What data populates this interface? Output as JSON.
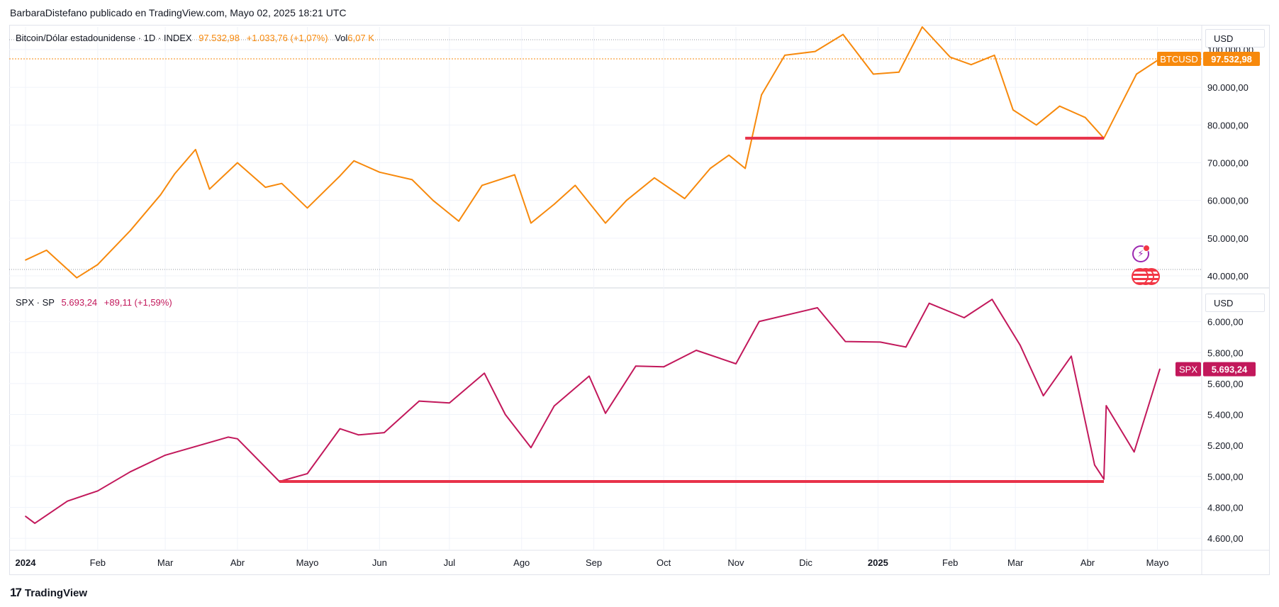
{
  "byline": "BarbaraDistefano publicado en TradingView.com, Mayo 02, 2025 18:21 UTC",
  "footer": {
    "logo": "17",
    "brand": "TradingView"
  },
  "colors": {
    "btc": "#f7890c",
    "spx": "#c2185b",
    "support": "#e8334a",
    "grid": "#f0f3fa",
    "axis_text": "#131722"
  },
  "top_panel": {
    "legend": {
      "symbol": "Bitcoin/Dólar estadounidense · 1D · INDEX",
      "last": "97.532,98",
      "change": "+1.033,76 (+1,07%)",
      "vol_label": "Vol",
      "vol_value": "6,07 K"
    },
    "unit": "USD",
    "price_tag_symbol": "BTCUSD",
    "price_tag_value": "97.532,98",
    "y_ticks": [
      "100.000,00",
      "90.000,00",
      "80.000,00",
      "70.000,00",
      "60.000,00",
      "50.000,00",
      "40.000,00"
    ]
  },
  "bottom_panel": {
    "legend": {
      "symbol": "SPX · SP",
      "last": "5.693,24",
      "change": "+89,11 (+1,59%)"
    },
    "unit": "USD",
    "price_tag_symbol": "SPX",
    "price_tag_value": "5.693,24",
    "y_ticks": [
      "6.000,00",
      "5.800,00",
      "5.600,00",
      "5.400,00",
      "5.200,00",
      "5.000,00",
      "4.800,00",
      "4.600,00"
    ]
  },
  "x_ticks": [
    "2024",
    "Feb",
    "Mar",
    "Abr",
    "Mayo",
    "Jun",
    "Jul",
    "Ago",
    "Sep",
    "Oct",
    "Nov",
    "Dic",
    "2025",
    "Feb",
    "Mar",
    "Abr",
    "Mayo"
  ],
  "chart_data": [
    {
      "type": "line",
      "title": "Bitcoin/Dólar estadounidense · 1D · INDEX",
      "series": [
        {
          "name": "BTCUSD",
          "x": [
            "2024-01-01",
            "2024-01-10",
            "2024-01-23",
            "2024-02-01",
            "2024-02-15",
            "2024-02-28",
            "2024-03-05",
            "2024-03-14",
            "2024-03-20",
            "2024-04-01",
            "2024-04-13",
            "2024-04-20",
            "2024-05-01",
            "2024-05-15",
            "2024-05-21",
            "2024-06-01",
            "2024-06-15",
            "2024-06-24",
            "2024-07-05",
            "2024-07-15",
            "2024-07-29",
            "2024-08-05",
            "2024-08-15",
            "2024-08-24",
            "2024-09-06",
            "2024-09-15",
            "2024-09-27",
            "2024-10-10",
            "2024-10-21",
            "2024-10-29",
            "2024-11-05",
            "2024-11-12",
            "2024-11-22",
            "2024-12-05",
            "2024-12-17",
            "2024-12-30",
            "2025-01-10",
            "2025-01-20",
            "2025-02-01",
            "2025-02-10",
            "2025-02-20",
            "2025-02-28",
            "2025-03-10",
            "2025-03-20",
            "2025-03-31",
            "2025-04-08",
            "2025-04-15",
            "2025-04-22",
            "2025-05-02"
          ],
          "values": [
            44200,
            46800,
            39500,
            43000,
            52000,
            61500,
            67000,
            73500,
            63000,
            70000,
            63500,
            64500,
            58000,
            66500,
            70500,
            67500,
            65500,
            60000,
            54500,
            64000,
            66800,
            54000,
            59000,
            64000,
            54000,
            60000,
            66000,
            60500,
            68500,
            72000,
            68500,
            88000,
            98500,
            99500,
            104000,
            93500,
            94000,
            106000,
            98000,
            96000,
            98500,
            84000,
            80000,
            85000,
            82000,
            76500,
            85000,
            93500,
            97532.98
          ]
        }
      ],
      "y_range": [
        37000,
        106000
      ],
      "annotations": [
        "support line ≈ 76.500 (Nov 2024 – Abr 2025)"
      ]
    },
    {
      "type": "line",
      "title": "SPX · SP",
      "series": [
        {
          "name": "SPX",
          "x": [
            "2024-01-01",
            "2024-01-05",
            "2024-01-19",
            "2024-02-01",
            "2024-02-15",
            "2024-03-01",
            "2024-03-28",
            "2024-04-01",
            "2024-04-19",
            "2024-05-01",
            "2024-05-15",
            "2024-05-23",
            "2024-06-03",
            "2024-06-18",
            "2024-07-01",
            "2024-07-16",
            "2024-07-25",
            "2024-08-05",
            "2024-08-15",
            "2024-08-30",
            "2024-09-06",
            "2024-09-19",
            "2024-10-01",
            "2024-10-15",
            "2024-11-01",
            "2024-11-11",
            "2024-12-06",
            "2024-12-18",
            "2025-01-02",
            "2025-01-13",
            "2025-01-23",
            "2025-02-07",
            "2025-02-19",
            "2025-03-03",
            "2025-03-13",
            "2025-03-25",
            "2025-04-04",
            "2025-04-08",
            "2025-04-09",
            "2025-04-21",
            "2025-05-02"
          ],
          "values": [
            4742,
            4697,
            4840,
            4906,
            5030,
            5137,
            5254,
            5243,
            4967,
            5018,
            5308,
            5268,
            5283,
            5487,
            5475,
            5667,
            5400,
            5186,
            5455,
            5648,
            5408,
            5713,
            5708,
            5815,
            5728,
            6001,
            6090,
            5872,
            5868,
            5836,
            6119,
            6026,
            6144,
            5849,
            5521,
            5777,
            5074,
            4982,
            5457,
            5158,
            5693.24
          ]
        }
      ],
      "y_range": [
        4550,
        6200
      ],
      "annotations": [
        "support line ≈ 4.967 (Abr 2024 – Abr 2025)"
      ]
    }
  ]
}
